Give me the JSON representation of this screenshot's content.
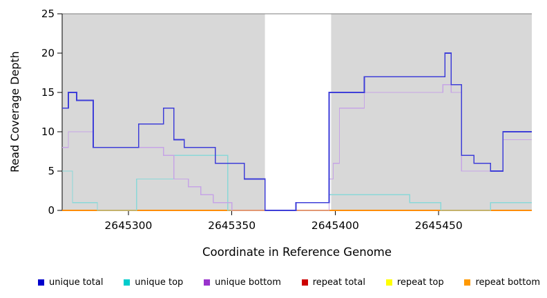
{
  "chart_data": {
    "type": "line",
    "subtype": "step",
    "title": "",
    "xlabel": "Coordinate in Reference Genome",
    "ylabel": "Read Coverage Depth",
    "x_range": [
      2645268,
      2645495
    ],
    "y_range": [
      0,
      25
    ],
    "x_ticks": [
      2645300,
      2645350,
      2645400,
      2645450
    ],
    "y_ticks": [
      0,
      5,
      10,
      15,
      20,
      25
    ],
    "grid": false,
    "legend_position": "bottom",
    "shaded_color": "#d8d8d8",
    "top_border_color": "#7d7d7d",
    "axis_color": "#000000",
    "shaded_regions": [
      {
        "start": 2645268,
        "end": 2645366
      },
      {
        "start": 2645398,
        "end": 2645495
      }
    ],
    "series": [
      {
        "name": "unique total",
        "color": "#0000cc",
        "line_color": "#3e3ed8",
        "points": [
          [
            2645268,
            13
          ],
          [
            2645271,
            15
          ],
          [
            2645275,
            14
          ],
          [
            2645283,
            8
          ],
          [
            2645305,
            11
          ],
          [
            2645317,
            13
          ],
          [
            2645322,
            9
          ],
          [
            2645327,
            8
          ],
          [
            2645342,
            6
          ],
          [
            2645356,
            4
          ],
          [
            2645366,
            0
          ],
          [
            2645381,
            1
          ],
          [
            2645397,
            15
          ],
          [
            2645414,
            17
          ],
          [
            2645453,
            20
          ],
          [
            2645456,
            16
          ],
          [
            2645461,
            7
          ],
          [
            2645467,
            6
          ],
          [
            2645475,
            5
          ],
          [
            2645481,
            10
          ]
        ]
      },
      {
        "name": "unique top",
        "color": "#00cccc",
        "line_color": "#8ad8d8",
        "points": [
          [
            2645268,
            5
          ],
          [
            2645273,
            1
          ],
          [
            2645285,
            0
          ],
          [
            2645304,
            4
          ],
          [
            2645322,
            7
          ],
          [
            2645348,
            0
          ],
          [
            2645397,
            2
          ],
          [
            2645436,
            1
          ],
          [
            2645451,
            0
          ],
          [
            2645475,
            1
          ]
        ]
      },
      {
        "name": "unique bottom",
        "color": "#9933cc",
        "line_color": "#c6a4e6",
        "points": [
          [
            2645268,
            8
          ],
          [
            2645271,
            10
          ],
          [
            2645283,
            8
          ],
          [
            2645317,
            7
          ],
          [
            2645322,
            4
          ],
          [
            2645329,
            3
          ],
          [
            2645335,
            2
          ],
          [
            2645341,
            1
          ],
          [
            2645350,
            0
          ],
          [
            2645397,
            4
          ],
          [
            2645399,
            6
          ],
          [
            2645402,
            13
          ],
          [
            2645414,
            15
          ],
          [
            2645452,
            16
          ],
          [
            2645456,
            15
          ],
          [
            2645461,
            5
          ],
          [
            2645481,
            9
          ]
        ]
      },
      {
        "name": "repeat total",
        "color": "#cc0000",
        "line_color": "#cc0000",
        "points": [
          [
            2645268,
            0
          ]
        ]
      },
      {
        "name": "repeat top",
        "color": "#ffff00",
        "line_color": "#ffff00",
        "points": [
          [
            2645268,
            0
          ]
        ]
      },
      {
        "name": "repeat bottom",
        "color": "#ff9900",
        "line_color": "#ff8c00",
        "points": [
          [
            2645268,
            0
          ]
        ]
      }
    ]
  }
}
